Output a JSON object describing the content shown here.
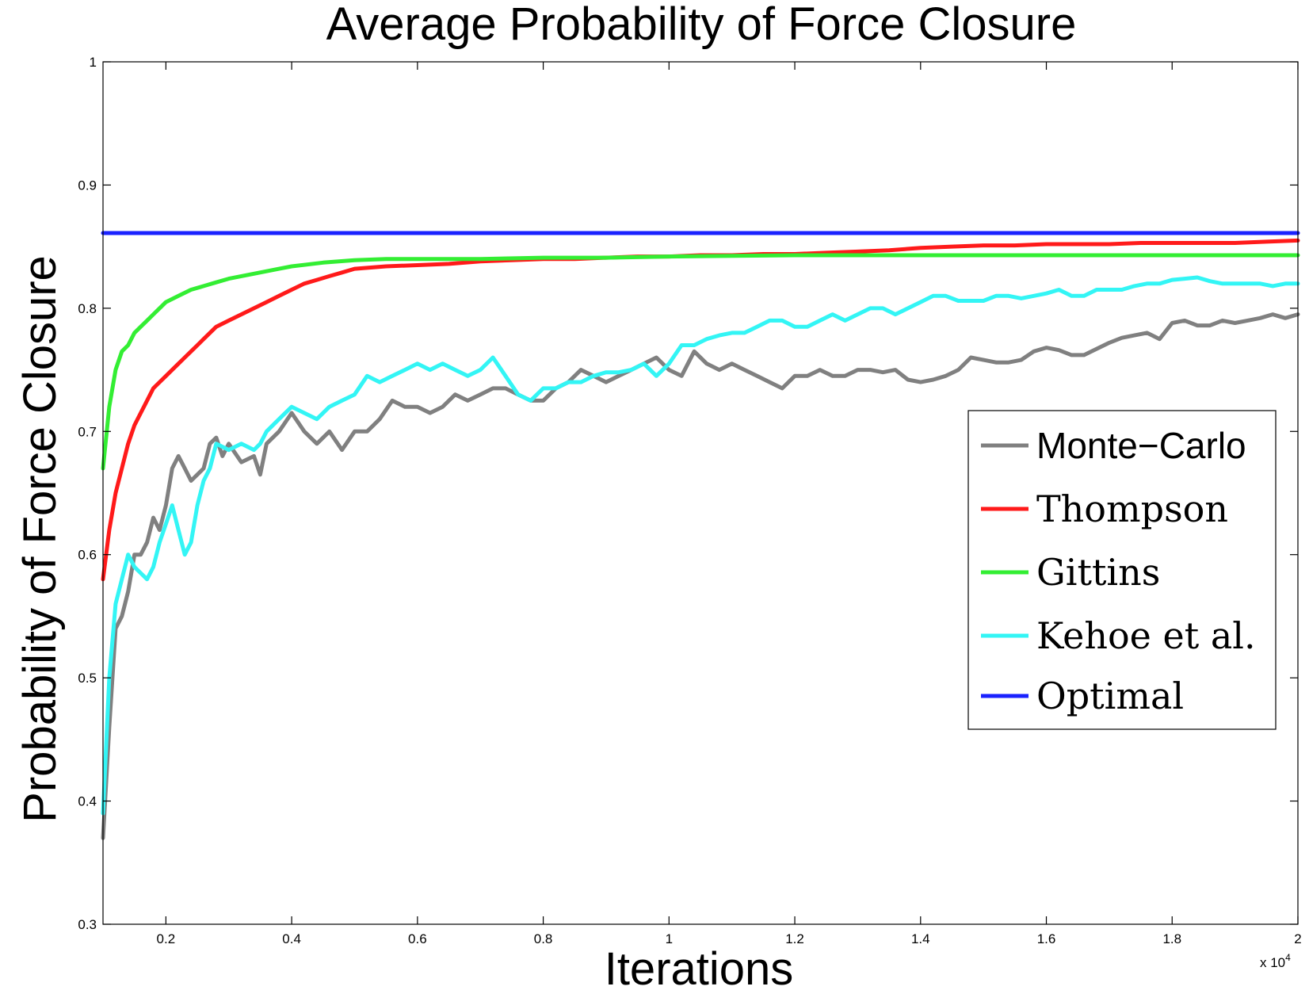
{
  "chart_data": {
    "type": "line",
    "title": "Average Probability of Force Closure",
    "xlabel": "Iterations",
    "ylabel": "Probability of Force Closure",
    "x_exponent_label": "x 10",
    "x_exponent_power": "4",
    "xlim": [
      1000,
      20000
    ],
    "ylim": [
      0.3,
      1.0
    ],
    "x_ticks": [
      {
        "value": 2000,
        "label": "0.2"
      },
      {
        "value": 4000,
        "label": "0.4"
      },
      {
        "value": 6000,
        "label": "0.6"
      },
      {
        "value": 8000,
        "label": "0.8"
      },
      {
        "value": 10000,
        "label": "1"
      },
      {
        "value": 12000,
        "label": "1.2"
      },
      {
        "value": 14000,
        "label": "1.4"
      },
      {
        "value": 16000,
        "label": "1.6"
      },
      {
        "value": 18000,
        "label": "1.8"
      },
      {
        "value": 20000,
        "label": "2"
      }
    ],
    "y_ticks": [
      {
        "value": 0.3,
        "label": "0.3"
      },
      {
        "value": 0.4,
        "label": "0.4"
      },
      {
        "value": 0.5,
        "label": "0.5"
      },
      {
        "value": 0.6,
        "label": "0.6"
      },
      {
        "value": 0.7,
        "label": "0.7"
      },
      {
        "value": 0.8,
        "label": "0.8"
      },
      {
        "value": 0.9,
        "label": "0.9"
      },
      {
        "value": 1.0,
        "label": "1"
      }
    ],
    "grid": false,
    "legend_position": "right",
    "series": [
      {
        "name": "Monte−Carlo",
        "color": "#808080",
        "x": [
          1000,
          1100,
          1200,
          1300,
          1400,
          1500,
          1600,
          1700,
          1800,
          1900,
          2000,
          2100,
          2200,
          2300,
          2400,
          2500,
          2600,
          2700,
          2800,
          2900,
          3000,
          3200,
          3400,
          3500,
          3600,
          3800,
          4000,
          4200,
          4400,
          4600,
          4800,
          5000,
          5200,
          5400,
          5600,
          5800,
          6000,
          6200,
          6400,
          6600,
          6800,
          7000,
          7200,
          7400,
          7600,
          7800,
          8000,
          8200,
          8400,
          8600,
          8800,
          9000,
          9200,
          9400,
          9600,
          9800,
          10000,
          10200,
          10400,
          10600,
          10800,
          11000,
          11200,
          11400,
          11600,
          11800,
          12000,
          12200,
          12400,
          12600,
          12800,
          13000,
          13200,
          13400,
          13600,
          13800,
          14000,
          14200,
          14400,
          14600,
          14800,
          15000,
          15200,
          15400,
          15600,
          15800,
          16000,
          16200,
          16400,
          16600,
          16800,
          17000,
          17200,
          17400,
          17600,
          17800,
          18000,
          18200,
          18400,
          18600,
          18800,
          19000,
          19200,
          19400,
          19600,
          19800,
          20000
        ],
        "y": [
          0.37,
          0.46,
          0.54,
          0.55,
          0.57,
          0.6,
          0.6,
          0.61,
          0.63,
          0.62,
          0.64,
          0.67,
          0.68,
          0.67,
          0.66,
          0.665,
          0.67,
          0.69,
          0.695,
          0.68,
          0.69,
          0.675,
          0.68,
          0.665,
          0.69,
          0.7,
          0.715,
          0.7,
          0.69,
          0.7,
          0.685,
          0.7,
          0.7,
          0.71,
          0.725,
          0.72,
          0.72,
          0.715,
          0.72,
          0.73,
          0.725,
          0.73,
          0.735,
          0.735,
          0.73,
          0.725,
          0.725,
          0.735,
          0.74,
          0.75,
          0.745,
          0.74,
          0.745,
          0.75,
          0.755,
          0.76,
          0.75,
          0.745,
          0.765,
          0.755,
          0.75,
          0.755,
          0.75,
          0.745,
          0.74,
          0.735,
          0.745,
          0.745,
          0.75,
          0.745,
          0.745,
          0.75,
          0.75,
          0.748,
          0.75,
          0.742,
          0.74,
          0.742,
          0.745,
          0.75,
          0.76,
          0.758,
          0.756,
          0.756,
          0.758,
          0.765,
          0.768,
          0.766,
          0.762,
          0.762,
          0.767,
          0.772,
          0.776,
          0.778,
          0.78,
          0.775,
          0.788,
          0.79,
          0.786,
          0.786,
          0.79,
          0.788,
          0.79,
          0.792,
          0.795,
          0.792,
          0.795
        ]
      },
      {
        "name": "Thompson",
        "color": "#ff1a1a",
        "x": [
          1000,
          1100,
          1200,
          1300,
          1400,
          1500,
          1600,
          1700,
          1800,
          1900,
          2000,
          2100,
          2200,
          2300,
          2400,
          2500,
          2600,
          2800,
          3000,
          3200,
          3400,
          3600,
          3800,
          4000,
          4200,
          4400,
          4600,
          4800,
          5000,
          5500,
          6000,
          6500,
          7000,
          7500,
          8000,
          8500,
          9000,
          9500,
          10000,
          10500,
          11000,
          11500,
          12000,
          12500,
          13000,
          13500,
          14000,
          14500,
          15000,
          15500,
          16000,
          16500,
          17000,
          17500,
          18000,
          18500,
          19000,
          19500,
          20000
        ],
        "y": [
          0.58,
          0.62,
          0.65,
          0.67,
          0.69,
          0.705,
          0.715,
          0.725,
          0.735,
          0.74,
          0.745,
          0.75,
          0.755,
          0.76,
          0.765,
          0.77,
          0.775,
          0.785,
          0.79,
          0.795,
          0.8,
          0.805,
          0.81,
          0.815,
          0.82,
          0.823,
          0.826,
          0.829,
          0.832,
          0.834,
          0.835,
          0.836,
          0.838,
          0.839,
          0.84,
          0.84,
          0.841,
          0.842,
          0.842,
          0.843,
          0.843,
          0.844,
          0.844,
          0.845,
          0.846,
          0.847,
          0.849,
          0.85,
          0.851,
          0.851,
          0.852,
          0.852,
          0.852,
          0.853,
          0.853,
          0.853,
          0.853,
          0.854,
          0.855
        ]
      },
      {
        "name": "Gittins",
        "color": "#33ee33",
        "x": [
          1000,
          1100,
          1200,
          1300,
          1400,
          1500,
          1600,
          1700,
          1800,
          1900,
          2000,
          2200,
          2400,
          2600,
          2800,
          3000,
          3200,
          3400,
          3600,
          3800,
          4000,
          4500,
          5000,
          5500,
          6000,
          7000,
          8000,
          9000,
          10000,
          12000,
          14000,
          16000,
          18000,
          20000
        ],
        "y": [
          0.67,
          0.72,
          0.75,
          0.765,
          0.77,
          0.78,
          0.785,
          0.79,
          0.795,
          0.8,
          0.805,
          0.81,
          0.815,
          0.818,
          0.821,
          0.824,
          0.826,
          0.828,
          0.83,
          0.832,
          0.834,
          0.837,
          0.839,
          0.84,
          0.84,
          0.84,
          0.841,
          0.841,
          0.842,
          0.843,
          0.843,
          0.843,
          0.843,
          0.843
        ]
      },
      {
        "name": "Kehoe et al.",
        "color": "#33f5f5",
        "x": [
          1000,
          1100,
          1200,
          1300,
          1400,
          1500,
          1600,
          1700,
          1800,
          1900,
          2000,
          2100,
          2200,
          2300,
          2400,
          2500,
          2600,
          2700,
          2800,
          3000,
          3200,
          3400,
          3500,
          3600,
          3800,
          4000,
          4200,
          4400,
          4600,
          4800,
          5000,
          5200,
          5400,
          5600,
          5800,
          6000,
          6200,
          6400,
          6600,
          6800,
          7000,
          7200,
          7400,
          7600,
          7800,
          8000,
          8200,
          8400,
          8600,
          8800,
          9000,
          9200,
          9400,
          9600,
          9800,
          10000,
          10200,
          10400,
          10600,
          10800,
          11000,
          11200,
          11400,
          11600,
          11800,
          12000,
          12200,
          12400,
          12600,
          12800,
          13000,
          13200,
          13400,
          13600,
          13800,
          14000,
          14200,
          14400,
          14600,
          14800,
          15000,
          15200,
          15400,
          15600,
          15800,
          16000,
          16200,
          16400,
          16600,
          16800,
          17000,
          17200,
          17400,
          17600,
          17800,
          18000,
          18200,
          18400,
          18600,
          18800,
          19000,
          19200,
          19400,
          19600,
          19800,
          20000
        ],
        "y": [
          0.39,
          0.5,
          0.56,
          0.58,
          0.6,
          0.59,
          0.585,
          0.58,
          0.59,
          0.61,
          0.625,
          0.64,
          0.62,
          0.6,
          0.61,
          0.64,
          0.66,
          0.67,
          0.69,
          0.685,
          0.69,
          0.685,
          0.69,
          0.7,
          0.71,
          0.72,
          0.715,
          0.71,
          0.72,
          0.725,
          0.73,
          0.745,
          0.74,
          0.745,
          0.75,
          0.755,
          0.75,
          0.755,
          0.75,
          0.745,
          0.75,
          0.76,
          0.745,
          0.73,
          0.725,
          0.735,
          0.735,
          0.74,
          0.74,
          0.745,
          0.748,
          0.748,
          0.75,
          0.755,
          0.745,
          0.755,
          0.77,
          0.77,
          0.775,
          0.778,
          0.78,
          0.78,
          0.785,
          0.79,
          0.79,
          0.785,
          0.785,
          0.79,
          0.795,
          0.79,
          0.795,
          0.8,
          0.8,
          0.795,
          0.8,
          0.805,
          0.81,
          0.81,
          0.806,
          0.806,
          0.806,
          0.81,
          0.81,
          0.808,
          0.81,
          0.812,
          0.815,
          0.81,
          0.81,
          0.815,
          0.815,
          0.815,
          0.818,
          0.82,
          0.82,
          0.823,
          0.824,
          0.825,
          0.822,
          0.82,
          0.82,
          0.82,
          0.82,
          0.818,
          0.82,
          0.82
        ]
      },
      {
        "name": "Optimal",
        "color": "#1a22ff",
        "x": [
          1000,
          20000
        ],
        "y": [
          0.861,
          0.861
        ]
      }
    ]
  }
}
